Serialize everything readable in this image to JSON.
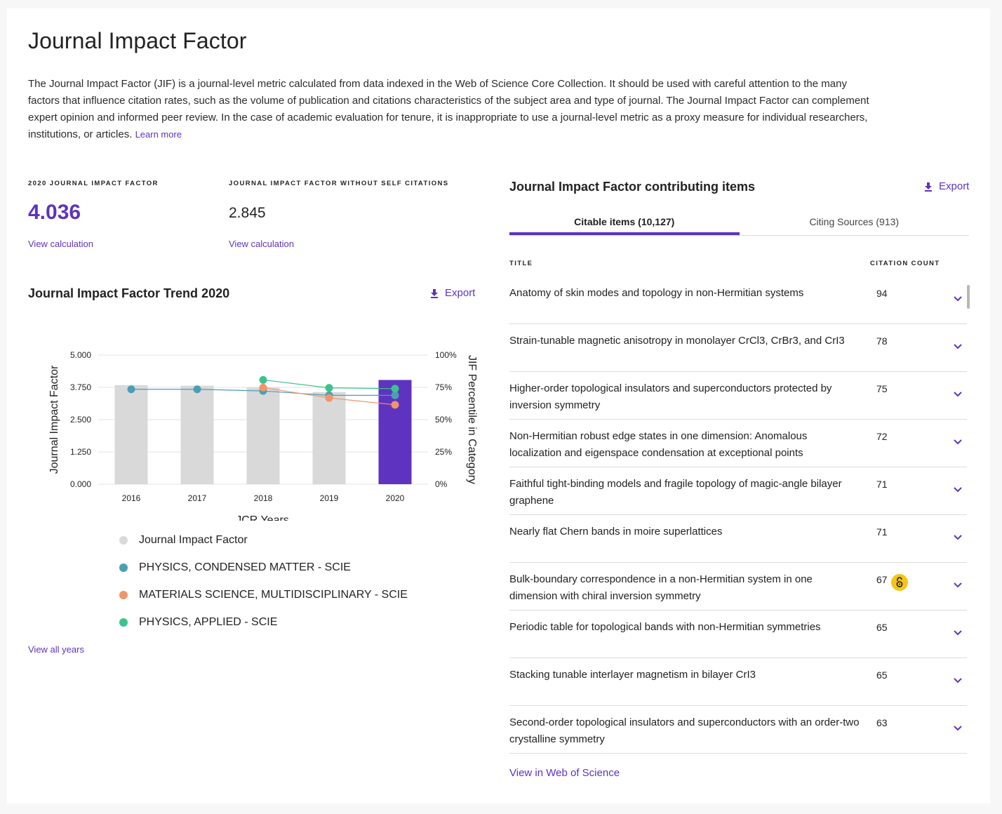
{
  "page": {
    "title": "Journal Impact Factor",
    "description": "The Journal Impact Factor (JIF) is a journal-level metric calculated from data indexed in the Web of Science Core Collection. It should be used with careful attention to the many factors that influence citation rates, such as the volume of publication and citations characteristics of the subject area and type of journal. The Journal Impact Factor can complement expert opinion and informed peer review. In the case of academic evaluation for tenure, it is inappropriate to use a journal-level metric as a proxy measure for individual researchers, institutions, or articles.",
    "learn_more": "Learn more"
  },
  "metrics": {
    "jif_label": "2020 JOURNAL IMPACT FACTOR",
    "jif_value": "4.036",
    "jif_link": "View calculation",
    "noself_label": "JOURNAL IMPACT FACTOR WITHOUT SELF CITATIONS",
    "noself_value": "2.845",
    "noself_link": "View calculation"
  },
  "trend": {
    "title": "Journal Impact Factor Trend 2020",
    "export_label": "Export",
    "view_all": "View all years"
  },
  "chart_data": {
    "type": "bar",
    "categories": [
      "2016",
      "2017",
      "2018",
      "2019",
      "2020"
    ],
    "xlabel": "JCR Years",
    "ylabel": "Journal Impact Factor",
    "ylabel_right": "JIF Percentile in Category",
    "ylim": [
      0,
      5
    ],
    "y_ticks": [
      "0.000",
      "1.250",
      "2.500",
      "3.750",
      "5.000"
    ],
    "y2lim": [
      0,
      100
    ],
    "y2_ticks": [
      "0%",
      "25%",
      "50%",
      "75%",
      "100%"
    ],
    "bars": {
      "name": "Journal Impact Factor",
      "values": [
        3.836,
        3.813,
        3.736,
        3.568,
        4.036
      ],
      "color": "#d9d9d9",
      "highlight_color": "#5e33bf",
      "highlight_index": 4
    },
    "series": [
      {
        "name": "PHYSICS, CONDENSED MATTER - SCIE",
        "color": "#4a9fb5",
        "values": [
          73.5,
          73.5,
          72.2,
          68.8,
          68.8
        ]
      },
      {
        "name": "MATERIALS SCIENCE, MULTIDISCIPLINARY - SCIE",
        "color": "#f0956a",
        "values": [
          null,
          null,
          74.8,
          66.8,
          61.5
        ]
      },
      {
        "name": "PHYSICS, APPLIED - SCIE",
        "color": "#3cc28e",
        "values": [
          null,
          null,
          80.8,
          74.6,
          74.0
        ]
      }
    ],
    "legend_position": "bottom",
    "grid": true
  },
  "legend": {
    "items": [
      {
        "label": "Journal Impact Factor",
        "color": "#d9d9d9"
      },
      {
        "label": "PHYSICS, CONDENSED MATTER - SCIE",
        "color": "#4a9fb5"
      },
      {
        "label": "MATERIALS SCIENCE, MULTIDISCIPLINARY - SCIE",
        "color": "#f0956a"
      },
      {
        "label": "PHYSICS, APPLIED - SCIE",
        "color": "#3cc28e"
      }
    ]
  },
  "contrib": {
    "title": "Journal Impact Factor contributing items",
    "export_label": "Export",
    "tabs": [
      {
        "label": "Citable items (10,127)",
        "active": true
      },
      {
        "label": "Citing Sources (913)",
        "active": false
      }
    ],
    "col_title": "TITLE",
    "col_count": "CITATION COUNT",
    "rows": [
      {
        "title": "Anatomy of skin modes and topology in non-Hermitian systems",
        "count": "94",
        "open_access": false
      },
      {
        "title": "Strain-tunable magnetic anisotropy in monolayer CrCl3, CrBr3, and CrI3",
        "count": "78",
        "open_access": false
      },
      {
        "title": "Higher-order topological insulators and superconductors protected by inversion symmetry",
        "count": "75",
        "open_access": false
      },
      {
        "title": "Non-Hermitian robust edge states in one dimension: Anomalous localization and eigenspace condensation at exceptional points",
        "count": "72",
        "open_access": false
      },
      {
        "title": "Faithful tight-binding models and fragile topology of magic-angle bilayer graphene",
        "count": "71",
        "open_access": false
      },
      {
        "title": "Nearly flat Chern bands in moire superlattices",
        "count": "71",
        "open_access": false
      },
      {
        "title": "Bulk-boundary correspondence in a non-Hermitian system in one dimension with chiral inversion symmetry",
        "count": "67",
        "open_access": true
      },
      {
        "title": "Periodic table for topological bands with non-Hermitian symmetries",
        "count": "65",
        "open_access": false
      },
      {
        "title": "Stacking tunable interlayer magnetism in bilayer CrI3",
        "count": "65",
        "open_access": false
      },
      {
        "title": "Second-order topological insulators and superconductors with an order-two crystalline symmetry",
        "count": "63",
        "open_access": false
      }
    ],
    "view_in_wos": "View in Web of Science"
  },
  "colors": {
    "accent": "#5e33bf",
    "oa_badge": "#f5c518"
  }
}
